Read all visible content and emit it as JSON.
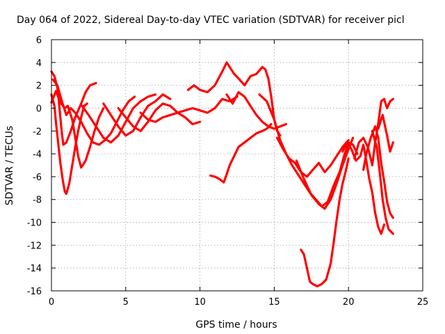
{
  "chart_data": {
    "type": "scatter",
    "title": "Day 064 of 2022, Sidereal Day-to-day VTEC variation (SDTVAR) for receiver picl",
    "xlabel": "GPS time / hours",
    "ylabel": "SDTVAR / TECUs",
    "xlim": [
      0,
      25
    ],
    "ylim": [
      -16,
      6
    ],
    "xticks": [
      0,
      5,
      10,
      15,
      20,
      25
    ],
    "yticks": [
      6,
      4,
      2,
      0,
      -2,
      -4,
      -6,
      -8,
      -10,
      -12,
      -14,
      -16
    ],
    "grid": true,
    "marker": "+",
    "color": "#ff0000",
    "series": [
      {
        "points": [
          [
            0.0,
            3.2
          ],
          [
            0.2,
            2.8
          ],
          [
            0.4,
            1.8
          ],
          [
            0.5,
            0.6
          ],
          [
            0.6,
            -0.8
          ],
          [
            0.7,
            -2.2
          ],
          [
            0.8,
            -3.2
          ],
          [
            1.0,
            -3.0
          ],
          [
            1.3,
            -2.0
          ],
          [
            1.6,
            -0.8
          ],
          [
            2.0,
            0.4
          ],
          [
            2.3,
            1.4
          ],
          [
            2.6,
            2.0
          ],
          [
            3.0,
            2.2
          ]
        ]
      },
      {
        "points": [
          [
            0.0,
            1.2
          ],
          [
            0.2,
            0.2
          ],
          [
            0.3,
            -1.2
          ],
          [
            0.45,
            -3.0
          ],
          [
            0.6,
            -4.8
          ],
          [
            0.75,
            -6.2
          ],
          [
            0.9,
            -7.3
          ],
          [
            1.0,
            -7.5
          ],
          [
            1.2,
            -6.6
          ],
          [
            1.4,
            -5.0
          ],
          [
            1.6,
            -3.4
          ],
          [
            1.8,
            -2.0
          ],
          [
            2.0,
            -0.8
          ],
          [
            2.2,
            0.2
          ],
          [
            2.4,
            0.4
          ]
        ]
      },
      {
        "points": [
          [
            0.0,
            0.5
          ],
          [
            0.3,
            1.5
          ],
          [
            0.6,
            0.5
          ],
          [
            0.9,
            0.0
          ],
          [
            1.1,
            0.2
          ],
          [
            1.4,
            -1.0
          ],
          [
            1.6,
            -2.6
          ],
          [
            1.8,
            -4.2
          ],
          [
            2.0,
            -5.2
          ],
          [
            2.3,
            -4.6
          ],
          [
            2.6,
            -3.4
          ],
          [
            2.9,
            -2.0
          ],
          [
            3.2,
            -0.8
          ],
          [
            3.5,
            0.0
          ]
        ]
      },
      {
        "points": [
          [
            0.1,
            2.5
          ],
          [
            0.4,
            2.0
          ],
          [
            0.7,
            0.6
          ],
          [
            1.0,
            -0.6
          ],
          [
            1.3,
            0.0
          ],
          [
            1.6,
            -0.4
          ],
          [
            2.0,
            -1.2
          ],
          [
            2.4,
            -2.2
          ],
          [
            2.8,
            -3.0
          ],
          [
            3.2,
            -3.2
          ],
          [
            3.6,
            -2.8
          ],
          [
            4.0,
            -2.2
          ],
          [
            4.4,
            -1.2
          ],
          [
            4.8,
            -0.2
          ],
          [
            5.2,
            0.6
          ],
          [
            5.6,
            1.0
          ]
        ]
      },
      {
        "points": [
          [
            2.0,
            0.3
          ],
          [
            2.5,
            -0.6
          ],
          [
            3.0,
            -1.6
          ],
          [
            3.5,
            -2.6
          ],
          [
            4.0,
            -3.0
          ],
          [
            4.5,
            -2.4
          ],
          [
            5.0,
            -1.2
          ],
          [
            5.5,
            0.0
          ],
          [
            6.0,
            0.6
          ],
          [
            6.5,
            1.0
          ],
          [
            7.0,
            1.2
          ]
        ]
      },
      {
        "points": [
          [
            3.5,
            0.4
          ],
          [
            4.0,
            -0.6
          ],
          [
            4.5,
            -1.6
          ],
          [
            5.0,
            -2.4
          ],
          [
            5.5,
            -2.0
          ],
          [
            6.0,
            -0.8
          ],
          [
            6.5,
            0.2
          ],
          [
            7.0,
            0.6
          ],
          [
            7.5,
            1.2
          ],
          [
            8.0,
            0.8
          ]
        ]
      },
      {
        "points": [
          [
            4.5,
            0.0
          ],
          [
            5.0,
            -0.8
          ],
          [
            5.5,
            -1.6
          ],
          [
            6.0,
            -2.0
          ],
          [
            6.5,
            -1.2
          ],
          [
            7.0,
            -0.2
          ],
          [
            7.5,
            0.4
          ],
          [
            8.0,
            0.2
          ],
          [
            8.5,
            -0.4
          ],
          [
            9.0,
            -0.8
          ],
          [
            9.5,
            -1.4
          ],
          [
            10.0,
            -1.2
          ]
        ]
      },
      {
        "points": [
          [
            6.0,
            -0.4
          ],
          [
            6.5,
            -1.0
          ],
          [
            7.0,
            -1.2
          ],
          [
            7.5,
            -0.8
          ],
          [
            8.0,
            -0.6
          ],
          [
            8.5,
            -0.4
          ],
          [
            9.0,
            -0.2
          ],
          [
            9.5,
            0.0
          ],
          [
            10.0,
            -0.2
          ],
          [
            10.5,
            -0.4
          ],
          [
            11.0,
            0.0
          ],
          [
            11.5,
            0.8
          ],
          [
            12.0,
            0.6
          ],
          [
            12.5,
            1.0
          ]
        ]
      },
      {
        "points": [
          [
            9.2,
            1.6
          ],
          [
            9.6,
            2.0
          ],
          [
            10.0,
            1.6
          ],
          [
            10.5,
            1.4
          ],
          [
            11.0,
            2.0
          ],
          [
            11.5,
            3.2
          ],
          [
            11.8,
            4.0
          ],
          [
            12.0,
            3.6
          ],
          [
            12.3,
            3.0
          ],
          [
            12.6,
            2.6
          ],
          [
            13.0,
            2.0
          ],
          [
            13.4,
            2.8
          ],
          [
            13.8,
            3.0
          ],
          [
            14.2,
            3.6
          ],
          [
            14.4,
            3.4
          ],
          [
            14.6,
            2.6
          ],
          [
            14.8,
            1.0
          ],
          [
            15.0,
            -1.0
          ],
          [
            15.2,
            -2.0
          ],
          [
            15.4,
            -2.4
          ]
        ]
      },
      {
        "points": [
          [
            11.8,
            1.2
          ],
          [
            12.2,
            0.4
          ],
          [
            12.6,
            1.4
          ],
          [
            13.0,
            1.0
          ],
          [
            13.4,
            0.2
          ],
          [
            13.8,
            -0.6
          ],
          [
            14.2,
            -1.2
          ],
          [
            14.6,
            -1.6
          ],
          [
            15.0,
            -1.8
          ],
          [
            15.4,
            -1.6
          ],
          [
            15.8,
            -1.4
          ]
        ]
      },
      {
        "points": [
          [
            10.7,
            -5.9
          ],
          [
            11.0,
            -6.0
          ],
          [
            11.3,
            -6.2
          ],
          [
            11.6,
            -6.5
          ],
          [
            11.8,
            -5.8
          ],
          [
            12.0,
            -5.0
          ],
          [
            12.3,
            -4.2
          ],
          [
            12.6,
            -3.4
          ],
          [
            13.0,
            -3.0
          ],
          [
            13.4,
            -2.6
          ],
          [
            13.8,
            -2.2
          ],
          [
            14.2,
            -2.0
          ],
          [
            14.5,
            -1.8
          ],
          [
            14.8,
            -1.4
          ]
        ]
      },
      {
        "points": [
          [
            14.0,
            1.2
          ],
          [
            14.5,
            0.6
          ],
          [
            15.0,
            -1.0
          ],
          [
            15.4,
            -2.8
          ],
          [
            15.8,
            -4.0
          ],
          [
            16.2,
            -5.0
          ],
          [
            16.6,
            -5.8
          ],
          [
            17.0,
            -6.6
          ],
          [
            17.4,
            -7.4
          ],
          [
            17.8,
            -8.0
          ],
          [
            18.2,
            -8.6
          ],
          [
            18.6,
            -8.2
          ],
          [
            19.0,
            -6.8
          ],
          [
            19.4,
            -5.6
          ],
          [
            19.7,
            -4.2
          ],
          [
            20.0,
            -3.0
          ],
          [
            20.3,
            -3.2
          ],
          [
            20.6,
            -4.0
          ]
        ]
      },
      {
        "points": [
          [
            15.2,
            -2.6
          ],
          [
            15.6,
            -3.6
          ],
          [
            16.0,
            -4.4
          ],
          [
            16.4,
            -4.8
          ],
          [
            16.8,
            -5.6
          ],
          [
            17.2,
            -6.0
          ],
          [
            17.6,
            -5.4
          ],
          [
            18.0,
            -4.8
          ],
          [
            18.4,
            -5.6
          ],
          [
            18.8,
            -5.0
          ],
          [
            19.2,
            -4.2
          ],
          [
            19.6,
            -3.4
          ],
          [
            20.0,
            -2.8
          ]
        ]
      },
      {
        "points": [
          [
            16.5,
            -4.6
          ],
          [
            17.0,
            -6.2
          ],
          [
            17.5,
            -7.6
          ],
          [
            18.0,
            -8.4
          ],
          [
            18.4,
            -8.8
          ],
          [
            18.8,
            -8.0
          ],
          [
            19.2,
            -6.6
          ],
          [
            19.6,
            -5.0
          ],
          [
            20.0,
            -3.6
          ],
          [
            20.3,
            -2.6
          ]
        ]
      },
      {
        "points": [
          [
            16.8,
            -12.4
          ],
          [
            17.0,
            -12.8
          ],
          [
            17.2,
            -14.0
          ],
          [
            17.4,
            -15.2
          ],
          [
            17.6,
            -15.4
          ],
          [
            17.9,
            -15.6
          ],
          [
            18.2,
            -15.4
          ],
          [
            18.5,
            -15.0
          ],
          [
            18.8,
            -13.6
          ],
          [
            19.0,
            -11.8
          ],
          [
            19.2,
            -9.8
          ],
          [
            19.4,
            -8.0
          ],
          [
            19.6,
            -6.6
          ],
          [
            19.8,
            -5.6
          ],
          [
            20.0,
            -4.4
          ]
        ]
      },
      {
        "points": [
          [
            19.6,
            -3.8
          ],
          [
            19.9,
            -3.0
          ],
          [
            20.2,
            -3.6
          ],
          [
            20.5,
            -4.6
          ],
          [
            20.8,
            -4.2
          ],
          [
            21.0,
            -3.2
          ],
          [
            21.2,
            -4.6
          ],
          [
            21.4,
            -6.2
          ],
          [
            21.6,
            -7.4
          ],
          [
            21.8,
            -9.2
          ],
          [
            22.0,
            -10.4
          ],
          [
            22.2,
            -11.0
          ],
          [
            22.4,
            -10.2
          ]
        ]
      },
      {
        "points": [
          [
            20.4,
            -4.4
          ],
          [
            20.7,
            -3.0
          ],
          [
            21.0,
            -2.6
          ],
          [
            21.3,
            -3.4
          ],
          [
            21.6,
            -5.0
          ],
          [
            21.8,
            -3.0
          ],
          [
            22.0,
            -1.4
          ],
          [
            22.2,
            0.6
          ],
          [
            22.4,
            0.8
          ],
          [
            22.6,
            0.0
          ],
          [
            22.8,
            0.6
          ],
          [
            23.0,
            0.8
          ]
        ]
      },
      {
        "points": [
          [
            21.0,
            -5.4
          ],
          [
            21.2,
            -4.0
          ],
          [
            21.5,
            -2.6
          ],
          [
            21.8,
            -1.6
          ],
          [
            22.0,
            -2.6
          ],
          [
            22.2,
            -4.8
          ],
          [
            22.4,
            -6.4
          ],
          [
            22.6,
            -8.2
          ],
          [
            22.8,
            -9.2
          ],
          [
            23.0,
            -9.6
          ]
        ]
      },
      {
        "points": [
          [
            21.6,
            -2.0
          ],
          [
            21.9,
            -3.4
          ],
          [
            22.1,
            -5.6
          ],
          [
            22.3,
            -8.0
          ],
          [
            22.5,
            -9.6
          ],
          [
            22.7,
            -10.6
          ],
          [
            23.0,
            -11.0
          ]
        ]
      },
      {
        "points": [
          [
            22.0,
            -1.8
          ],
          [
            22.3,
            -0.6
          ],
          [
            22.6,
            -2.4
          ],
          [
            22.8,
            -3.8
          ],
          [
            23.0,
            -3.0
          ]
        ]
      }
    ]
  }
}
